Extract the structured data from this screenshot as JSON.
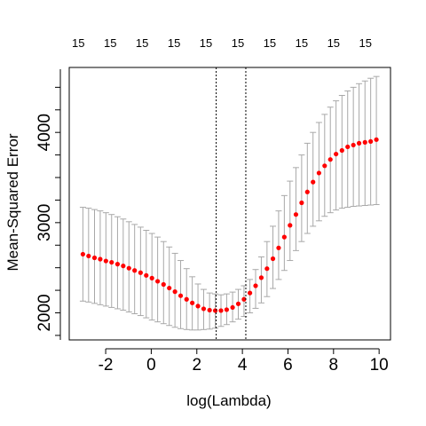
{
  "chart_data": {
    "type": "scatter",
    "title": "",
    "xlabel": "log(Lambda)",
    "ylabel": "Mean-Squared Error",
    "xlim": [
      -3.6,
      10.5
    ],
    "ylim": [
      1700,
      4720
    ],
    "x_ticks": [
      -2,
      0,
      2,
      4,
      6,
      8,
      10
    ],
    "x_tick_labels": [
      "-2",
      "0",
      "2",
      "4",
      "6",
      "8",
      "10"
    ],
    "y_ticks": [
      2000,
      3000,
      4000
    ],
    "y_tick_labels": [
      "2000",
      "3000",
      "4000"
    ],
    "top_axis_labels": [
      "15",
      "15",
      "15",
      "15",
      "15",
      "15",
      "15",
      "15",
      "15",
      "15"
    ],
    "top_axis_x": [
      -3.2,
      -1.8,
      -0.4,
      1.0,
      2.4,
      3.8,
      5.2,
      6.6,
      8.0,
      9.4
    ],
    "vlines": [
      2.85,
      4.15
    ],
    "grid": false,
    "point_color": "#ff0000",
    "errorbar_color": "#a8a8a8",
    "series": [
      {
        "x": [
          -3.0,
          -2.75,
          -2.49,
          -2.24,
          -1.99,
          -1.74,
          -1.48,
          -1.23,
          -0.98,
          -0.73,
          -0.47,
          -0.22,
          0.03,
          0.28,
          0.54,
          0.79,
          1.04,
          1.29,
          1.55,
          1.8,
          2.05,
          2.3,
          2.56,
          2.81,
          3.06,
          3.31,
          3.57,
          3.82,
          4.07,
          4.33,
          4.58,
          4.83,
          5.08,
          5.34,
          5.59,
          5.84,
          6.09,
          6.35,
          6.6,
          6.85,
          7.1,
          7.36,
          7.61,
          7.86,
          8.11,
          8.37,
          8.62,
          8.87,
          9.12,
          9.38,
          9.63,
          9.88
        ],
        "y": [
          2650,
          2630,
          2610,
          2595,
          2575,
          2560,
          2540,
          2520,
          2495,
          2470,
          2445,
          2415,
          2385,
          2350,
          2315,
          2275,
          2235,
          2190,
          2150,
          2110,
          2075,
          2045,
          2030,
          2025,
          2025,
          2035,
          2060,
          2100,
          2150,
          2220,
          2300,
          2390,
          2490,
          2600,
          2720,
          2840,
          2970,
          3090,
          3220,
          3340,
          3450,
          3550,
          3630,
          3700,
          3760,
          3800,
          3840,
          3860,
          3880,
          3890,
          3900,
          3920
        ],
        "lower": [
          2130,
          2120,
          2105,
          2090,
          2075,
          2060,
          2045,
          2030,
          2010,
          1990,
          1970,
          1945,
          1920,
          1900,
          1880,
          1860,
          1840,
          1825,
          1815,
          1810,
          1810,
          1815,
          1820,
          1830,
          1850,
          1870,
          1900,
          1930,
          1960,
          2000,
          2050,
          2110,
          2180,
          2270,
          2370,
          2470,
          2580,
          2690,
          2790,
          2880,
          2960,
          3020,
          3070,
          3110,
          3140,
          3160,
          3170,
          3180,
          3185,
          3190,
          3195,
          3200
        ],
        "upper": [
          3170,
          3160,
          3145,
          3130,
          3110,
          3090,
          3065,
          3040,
          3010,
          2980,
          2950,
          2915,
          2880,
          2840,
          2790,
          2730,
          2660,
          2580,
          2490,
          2400,
          2320,
          2260,
          2220,
          2210,
          2200,
          2210,
          2230,
          2260,
          2300,
          2370,
          2480,
          2620,
          2790,
          2960,
          3130,
          3300,
          3460,
          3610,
          3750,
          3880,
          4000,
          4110,
          4200,
          4280,
          4350,
          4410,
          4460,
          4500,
          4540,
          4570,
          4600,
          4620
        ]
      }
    ]
  }
}
